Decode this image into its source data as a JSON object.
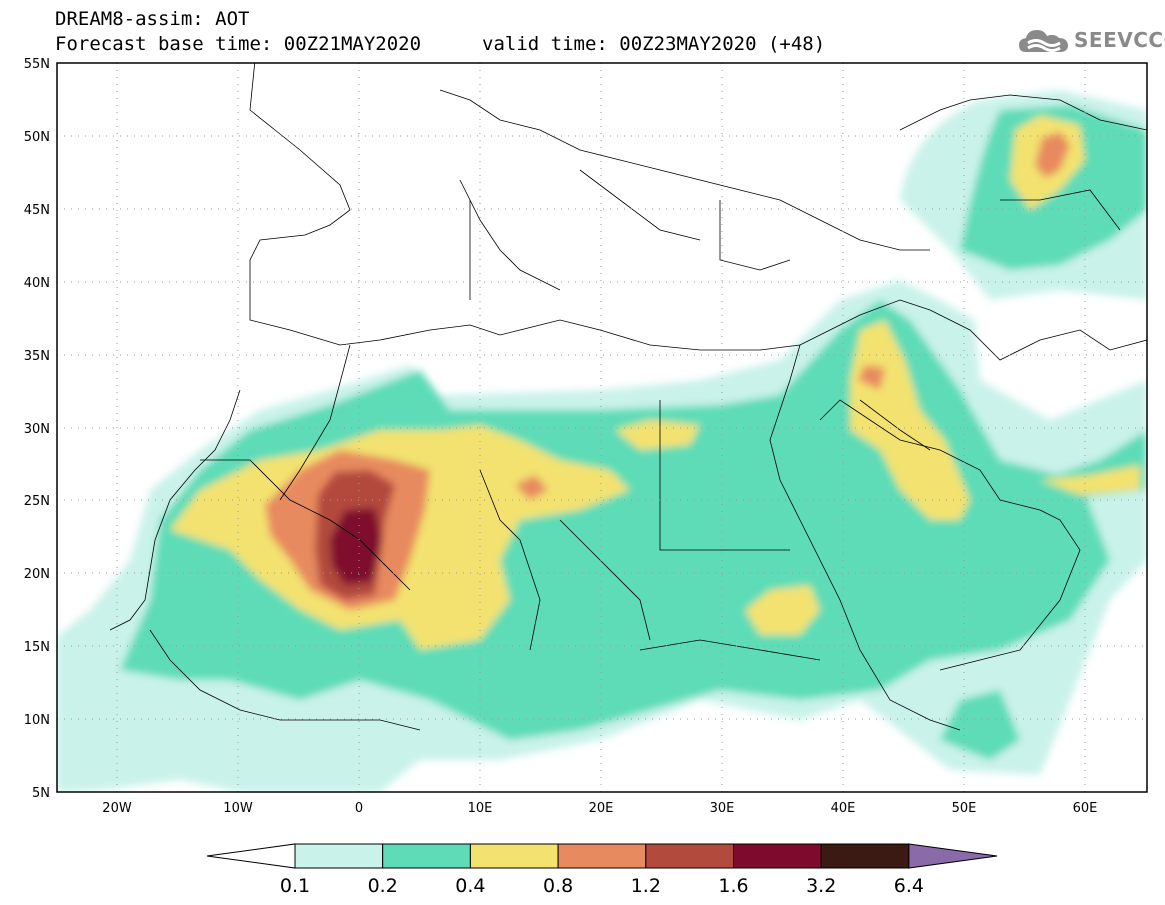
{
  "header": {
    "line1": "DREAM8-assim: AOT",
    "line2": "Forecast base time: 00Z21MAY2020",
    "line3": "valid time: 00Z23MAY2020 (+48)"
  },
  "logo": {
    "text": "SEEVCCC",
    "icon": "cloud-logo-icon"
  },
  "map": {
    "projection": "lat-lon",
    "lon_range": [
      -25,
      65
    ],
    "lat_range": [
      5,
      55
    ],
    "lat_ticks": [
      "5N",
      "10N",
      "15N",
      "20N",
      "25N",
      "30N",
      "35N",
      "40N",
      "45N",
      "50N",
      "55N"
    ],
    "lon_ticks": [
      "20W",
      "10W",
      "0",
      "10E",
      "20E",
      "30E",
      "40E",
      "50E",
      "60E"
    ],
    "grid": true
  },
  "legend": {
    "labels": [
      "0.1",
      "0.2",
      "0.4",
      "0.8",
      "1.2",
      "1.6",
      "3.2",
      "6.4"
    ],
    "colors": [
      "#ffffff",
      "#c9f2ea",
      "#5ddcb7",
      "#f3e26f",
      "#e88a5f",
      "#b34a3e",
      "#7e0a2e",
      "#3a1a12",
      "#8a6aa8"
    ]
  }
}
